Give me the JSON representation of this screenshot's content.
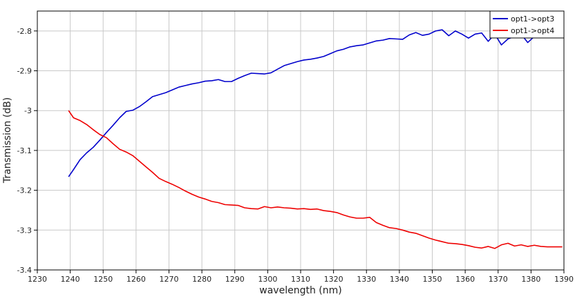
{
  "chart_data": {
    "type": "line",
    "xlabel": "wavelength (nm)",
    "ylabel": "Transmission (dB)",
    "xlim": [
      1230,
      1390
    ],
    "ylim": [
      -3.4,
      -2.75
    ],
    "xticks": [
      1230,
      1240,
      1250,
      1260,
      1270,
      1280,
      1290,
      1300,
      1310,
      1320,
      1330,
      1340,
      1350,
      1360,
      1370,
      1380,
      1390
    ],
    "yticks": [
      -3.4,
      -3.3,
      -3.2,
      -3.1,
      -3.0,
      -2.9,
      -2.8
    ],
    "ytick_labels": [
      "-3.4",
      "-3.3",
      "-3.2",
      "-3.1",
      "-3",
      "-2.9",
      "-2.8"
    ],
    "grid": true,
    "legend_position": "top-right",
    "series": [
      {
        "name": "opt1->opt3",
        "color": "#0000cc",
        "x": [
          1239.5,
          1241,
          1243,
          1245,
          1247,
          1249,
          1251,
          1253,
          1255,
          1257,
          1259,
          1261,
          1263,
          1265,
          1267,
          1269,
          1271,
          1273,
          1275,
          1277,
          1279,
          1281,
          1283,
          1285,
          1287,
          1289,
          1291,
          1293,
          1295,
          1297,
          1299,
          1301,
          1303,
          1305,
          1307,
          1309,
          1311,
          1313,
          1315,
          1317,
          1319,
          1321,
          1323,
          1325,
          1327,
          1329,
          1331,
          1333,
          1335,
          1337,
          1339,
          1341,
          1343,
          1345,
          1347,
          1349,
          1351,
          1353,
          1355,
          1357,
          1359,
          1361,
          1363,
          1365,
          1367,
          1369,
          1371,
          1373,
          1375,
          1377,
          1379,
          1381,
          1383,
          1385,
          1387,
          1389.5
        ],
        "y": [
          -3.166,
          -3.148,
          -3.123,
          -3.106,
          -3.092,
          -3.074,
          -3.055,
          -3.037,
          -3.018,
          -3.002,
          -2.999,
          -2.99,
          -2.978,
          -2.965,
          -2.96,
          -2.955,
          -2.948,
          -2.941,
          -2.937,
          -2.933,
          -2.93,
          -2.926,
          -2.925,
          -2.922,
          -2.927,
          -2.927,
          -2.919,
          -2.912,
          -2.906,
          -2.907,
          -2.908,
          -2.905,
          -2.896,
          -2.887,
          -2.882,
          -2.877,
          -2.873,
          -2.871,
          -2.868,
          -2.864,
          -2.857,
          -2.85,
          -2.846,
          -2.84,
          -2.837,
          -2.835,
          -2.83,
          -2.825,
          -2.823,
          -2.819,
          -2.82,
          -2.821,
          -2.81,
          -2.804,
          -2.811,
          -2.808,
          -2.8,
          -2.797,
          -2.812,
          -2.8,
          -2.808,
          -2.818,
          -2.808,
          -2.805,
          -2.826,
          -2.808,
          -2.835,
          -2.82,
          -2.814,
          -2.808,
          -2.829,
          -2.814,
          -2.812,
          -2.813,
          -2.815,
          -2.812
        ]
      },
      {
        "name": "opt1->opt4",
        "color": "#ee0000",
        "x": [
          1239.5,
          1241,
          1243,
          1245,
          1247,
          1249,
          1251,
          1253,
          1255,
          1257,
          1259,
          1261,
          1263,
          1265,
          1267,
          1269,
          1271,
          1273,
          1275,
          1277,
          1279,
          1281,
          1283,
          1285,
          1287,
          1289,
          1291,
          1293,
          1295,
          1297,
          1299,
          1301,
          1303,
          1305,
          1307,
          1309,
          1311,
          1313,
          1315,
          1317,
          1319,
          1321,
          1323,
          1325,
          1327,
          1329,
          1331,
          1333,
          1335,
          1337,
          1339,
          1341,
          1343,
          1345,
          1347,
          1349,
          1351,
          1353,
          1355,
          1357,
          1359,
          1361,
          1363,
          1365,
          1367,
          1369,
          1371,
          1373,
          1375,
          1377,
          1379,
          1381,
          1383,
          1385,
          1387,
          1389.5
        ],
        "y": [
          -3.0,
          -3.018,
          -3.025,
          -3.035,
          -3.048,
          -3.06,
          -3.068,
          -3.083,
          -3.097,
          -3.104,
          -3.113,
          -3.127,
          -3.141,
          -3.155,
          -3.17,
          -3.178,
          -3.185,
          -3.193,
          -3.202,
          -3.21,
          -3.217,
          -3.222,
          -3.228,
          -3.231,
          -3.236,
          -3.237,
          -3.238,
          -3.244,
          -3.246,
          -3.247,
          -3.241,
          -3.244,
          -3.242,
          -3.244,
          -3.245,
          -3.247,
          -3.246,
          -3.248,
          -3.247,
          -3.251,
          -3.253,
          -3.256,
          -3.262,
          -3.267,
          -3.27,
          -3.27,
          -3.268,
          -3.281,
          -3.288,
          -3.294,
          -3.296,
          -3.3,
          -3.305,
          -3.308,
          -3.314,
          -3.32,
          -3.325,
          -3.329,
          -3.333,
          -3.334,
          -3.336,
          -3.339,
          -3.343,
          -3.345,
          -3.341,
          -3.346,
          -3.337,
          -3.333,
          -3.34,
          -3.337,
          -3.341,
          -3.338,
          -3.341,
          -3.342,
          -3.342,
          -3.342
        ]
      }
    ]
  }
}
